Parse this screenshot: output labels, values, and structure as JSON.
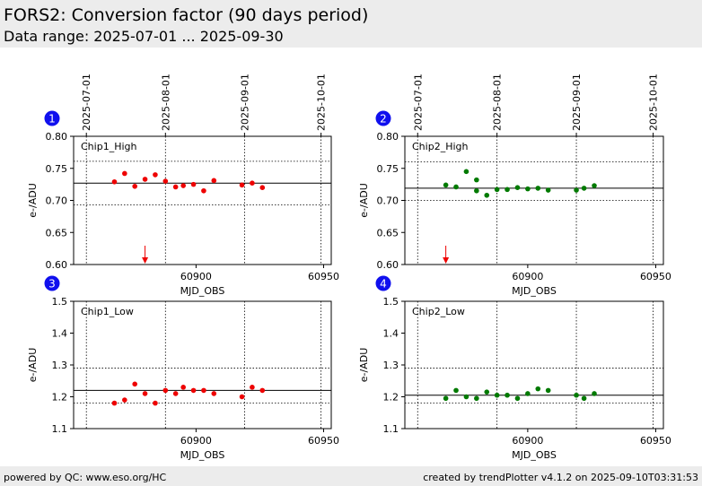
{
  "header": {
    "title": "FORS2: Conversion factor (90 days period)",
    "subtitle": "Data range: 2025-07-01 ... 2025-09-30"
  },
  "footer": {
    "left": "powered by QC: www.eso.org/HC",
    "right": "created by trendPlotter v4.1.2 on 2025-09-10T03:31:53"
  },
  "colors": {
    "chip1": "#ee0000",
    "chip2": "#007a00",
    "badge": "#1010ee",
    "arrow": "#ee0000"
  },
  "chart_data": [
    {
      "type": "scatter",
      "badge": "1",
      "label": "Chip1_High",
      "xlabel": "MJD_OBS",
      "ylabel": "e-/ADU",
      "xlim": [
        60852,
        60953
      ],
      "ylim": [
        0.6,
        0.8
      ],
      "yticks": [
        "0.60",
        "0.65",
        "0.70",
        "0.75",
        "0.80"
      ],
      "xticks": [
        "60900",
        "60950"
      ],
      "date_ticks": [
        "2025-07-01",
        "2025-08-01",
        "2025-09-01",
        "2025-10-01"
      ],
      "date_mjd": [
        60857,
        60888,
        60919,
        60949
      ],
      "reference_line": 0.727,
      "dotted_lines": [
        0.761,
        0.693
      ],
      "marker_arrow_x": 60880,
      "color": "#ee0000",
      "x": [
        60868,
        60872,
        60876,
        60880,
        60884,
        60888,
        60892,
        60895,
        60899,
        60903,
        60907,
        60918,
        60922,
        60926
      ],
      "y": [
        0.729,
        0.742,
        0.722,
        0.733,
        0.74,
        0.73,
        0.721,
        0.723,
        0.725,
        0.715,
        0.731,
        0.724,
        0.727,
        0.72
      ]
    },
    {
      "type": "scatter",
      "badge": "2",
      "label": "Chip2_High",
      "xlabel": "MJD_OBS",
      "ylabel": "e-/ADU",
      "xlim": [
        60852,
        60953
      ],
      "ylim": [
        0.6,
        0.8
      ],
      "yticks": [
        "0.60",
        "0.65",
        "0.70",
        "0.75",
        "0.80"
      ],
      "xticks": [
        "60900",
        "60950"
      ],
      "date_ticks": [
        "2025-07-01",
        "2025-08-01",
        "2025-09-01",
        "2025-10-01"
      ],
      "date_mjd": [
        60857,
        60888,
        60919,
        60949
      ],
      "reference_line": 0.719,
      "dotted_lines": [
        0.76,
        0.7
      ],
      "marker_arrow_x": 60868,
      "color": "#007a00",
      "x": [
        60868,
        60872,
        60876,
        60880,
        60880,
        60884,
        60888,
        60892,
        60896,
        60900,
        60904,
        60908,
        60919,
        60922,
        60926
      ],
      "y": [
        0.724,
        0.721,
        0.745,
        0.732,
        0.715,
        0.708,
        0.717,
        0.717,
        0.72,
        0.718,
        0.719,
        0.716,
        0.716,
        0.719,
        0.723
      ]
    },
    {
      "type": "scatter",
      "badge": "3",
      "label": "Chip1_Low",
      "xlabel": "MJD_OBS",
      "ylabel": "e-/ADU",
      "xlim": [
        60852,
        60953
      ],
      "ylim": [
        1.1,
        1.5
      ],
      "yticks": [
        "1.1",
        "1.2",
        "1.3",
        "1.4",
        "1.5"
      ],
      "xticks": [
        "60900",
        "60950"
      ],
      "date_mjd": [
        60857,
        60888,
        60919,
        60949
      ],
      "reference_line": 1.22,
      "dotted_lines": [
        1.29,
        1.18
      ],
      "color": "#ee0000",
      "x": [
        60868,
        60872,
        60876,
        60880,
        60884,
        60888,
        60892,
        60895,
        60899,
        60903,
        60907,
        60918,
        60922,
        60926
      ],
      "y": [
        1.18,
        1.19,
        1.24,
        1.21,
        1.18,
        1.22,
        1.21,
        1.23,
        1.22,
        1.22,
        1.21,
        1.2,
        1.23,
        1.22
      ]
    },
    {
      "type": "scatter",
      "badge": "4",
      "label": "Chip2_Low",
      "xlabel": "MJD_OBS",
      "ylabel": "e-/ADU",
      "xlim": [
        60852,
        60953
      ],
      "ylim": [
        1.1,
        1.5
      ],
      "yticks": [
        "1.1",
        "1.2",
        "1.3",
        "1.4",
        "1.5"
      ],
      "xticks": [
        "60900",
        "60950"
      ],
      "date_mjd": [
        60857,
        60888,
        60919,
        60949
      ],
      "reference_line": 1.205,
      "dotted_lines": [
        1.29,
        1.18
      ],
      "color": "#007a00",
      "x": [
        60868,
        60872,
        60876,
        60880,
        60884,
        60888,
        60892,
        60896,
        60900,
        60904,
        60908,
        60919,
        60922,
        60926
      ],
      "y": [
        1.195,
        1.22,
        1.2,
        1.195,
        1.215,
        1.205,
        1.205,
        1.195,
        1.21,
        1.225,
        1.22,
        1.205,
        1.195,
        1.21
      ]
    }
  ]
}
